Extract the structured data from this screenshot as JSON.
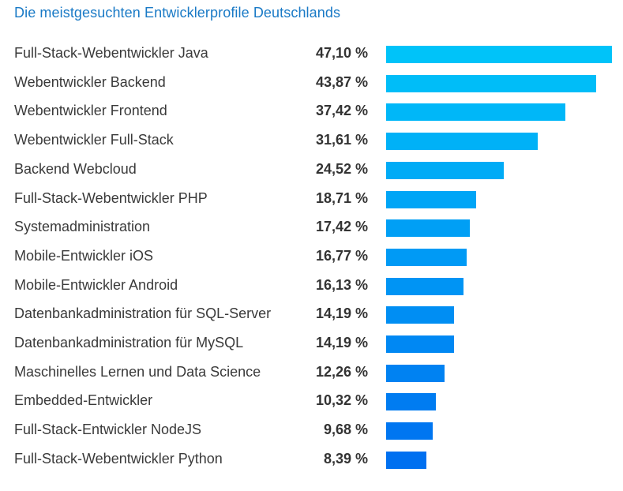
{
  "title": "Die meistgesuchten Entwicklerprofile Deutschlands",
  "chart_data": {
    "type": "bar",
    "title": "Die meistgesuchten Entwicklerprofile Deutschlands",
    "orientation": "horizontal",
    "categories": [
      "Full-Stack-Webentwickler Java",
      "Webentwickler Backend",
      "Webentwickler Frontend",
      "Webentwickler Full-Stack",
      "Backend Webcloud",
      "Full-Stack-Webentwickler PHP",
      "Systemadministration",
      "Mobile-Entwickler iOS",
      "Mobile-Entwickler Android",
      "Datenbankadministration für SQL-Server",
      "Datenbankadministration für MySQL",
      "Maschinelles Lernen und Data Science",
      "Embedded-Entwickler",
      "Full-Stack-Entwickler NodeJS",
      "Full-Stack-Webentwickler Python"
    ],
    "values": [
      47.1,
      43.87,
      37.42,
      31.61,
      24.52,
      18.71,
      17.42,
      16.77,
      16.13,
      14.19,
      14.19,
      12.26,
      10.32,
      9.68,
      8.39
    ],
    "value_labels": [
      "47,10 %",
      "43,87 %",
      "37,42 %",
      "31,61 %",
      "24,52 %",
      "18,71 %",
      "17,42 %",
      "16,77 %",
      "16,13 %",
      "14,19 %",
      "14,19 %",
      "12,26 %",
      "10,32 %",
      "9,68 %",
      "8,39 %"
    ],
    "xlabel": "",
    "ylabel": "",
    "xlim": [
      0,
      47.1
    ],
    "grid": false,
    "colors": [
      "#00c3f9",
      "#0070f0"
    ]
  }
}
